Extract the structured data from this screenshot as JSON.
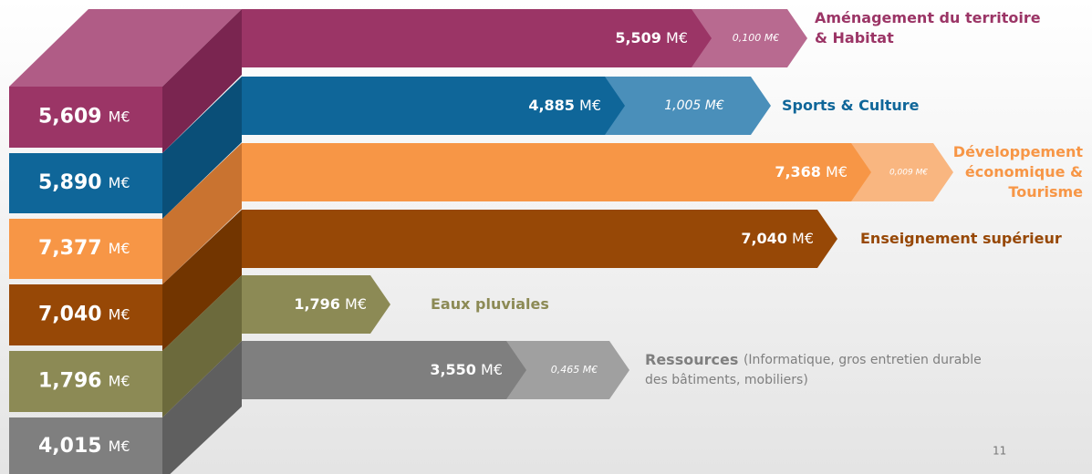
{
  "unit": "M€",
  "rows": [
    {
      "total": "5,609",
      "main": "5,509",
      "extra": "0,100 M€",
      "label": [
        "Aménagement du territoire",
        "& Habitat"
      ]
    },
    {
      "total": "5,890",
      "main": "4,885",
      "extra": "1,005 M€",
      "label": [
        "Sports & Culture"
      ]
    },
    {
      "total": "7,377",
      "main": "7,368",
      "extra": "0,009 M€",
      "label": [
        "Développement",
        "économique &",
        "Tourisme"
      ]
    },
    {
      "total": "7,040",
      "main": "7,040",
      "label": [
        "Enseignement supérieur"
      ]
    },
    {
      "total": "1,796",
      "main": "1,796",
      "label": [
        "Eaux pluviales"
      ]
    },
    {
      "total": "4,015",
      "main": "3,550",
      "extra": "0,465 M€",
      "label": [
        "Ressources"
      ],
      "note": [
        "(Informatique, gros entretien durable",
        "des bâtiments, mobiliers)"
      ]
    }
  ],
  "page_number": "11"
}
